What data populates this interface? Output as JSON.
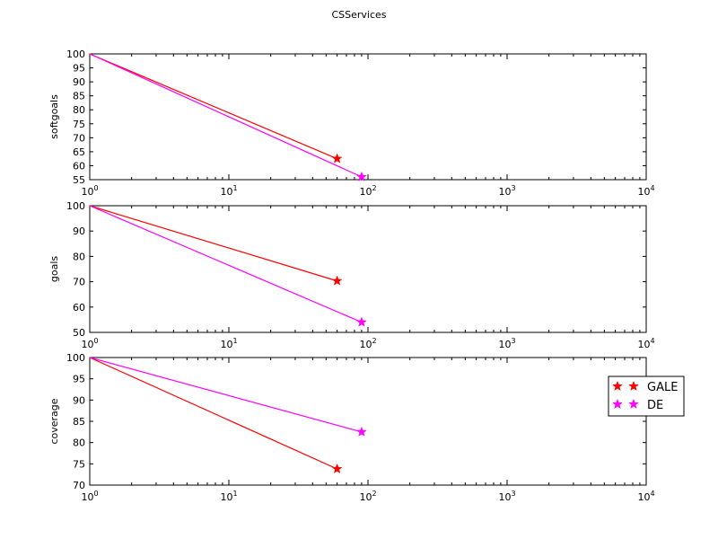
{
  "chart_data": {
    "type": "line",
    "title": "CSServices",
    "xscale": "log",
    "xlim": [
      1,
      10000
    ],
    "xticks": [
      1,
      10,
      100,
      1000,
      10000
    ],
    "legend": {
      "placement": "right",
      "entries": [
        {
          "name": "GALE",
          "color": "#ff0000"
        },
        {
          "name": "DE",
          "color": "#ff00ff"
        }
      ]
    },
    "subplots": [
      {
        "ylabel": "softgoals",
        "ylim": [
          55,
          100
        ],
        "yticks": [
          55,
          60,
          65,
          70,
          75,
          80,
          85,
          90,
          95,
          100
        ],
        "series": [
          {
            "name": "GALE",
            "color": "#ff0000",
            "x": [
              1,
              60
            ],
            "y": [
              100,
              62.5
            ]
          },
          {
            "name": "DE",
            "color": "#ff00ff",
            "x": [
              1,
              90
            ],
            "y": [
              100,
              56
            ]
          }
        ]
      },
      {
        "ylabel": "goals",
        "ylim": [
          50,
          100
        ],
        "yticks": [
          50,
          60,
          70,
          80,
          90,
          100
        ],
        "series": [
          {
            "name": "GALE",
            "color": "#ff0000",
            "x": [
              1,
              60
            ],
            "y": [
              100,
              70.3
            ]
          },
          {
            "name": "DE",
            "color": "#ff00ff",
            "x": [
              1,
              90
            ],
            "y": [
              100,
              54
            ]
          }
        ]
      },
      {
        "ylabel": "coverage",
        "ylim": [
          70,
          100
        ],
        "yticks": [
          70,
          75,
          80,
          85,
          90,
          95,
          100
        ],
        "series": [
          {
            "name": "GALE",
            "color": "#ff0000",
            "x": [
              1,
              60
            ],
            "y": [
              100,
              73.8
            ]
          },
          {
            "name": "DE",
            "color": "#ff00ff",
            "x": [
              1,
              90
            ],
            "y": [
              100,
              82.5
            ]
          }
        ]
      }
    ]
  }
}
